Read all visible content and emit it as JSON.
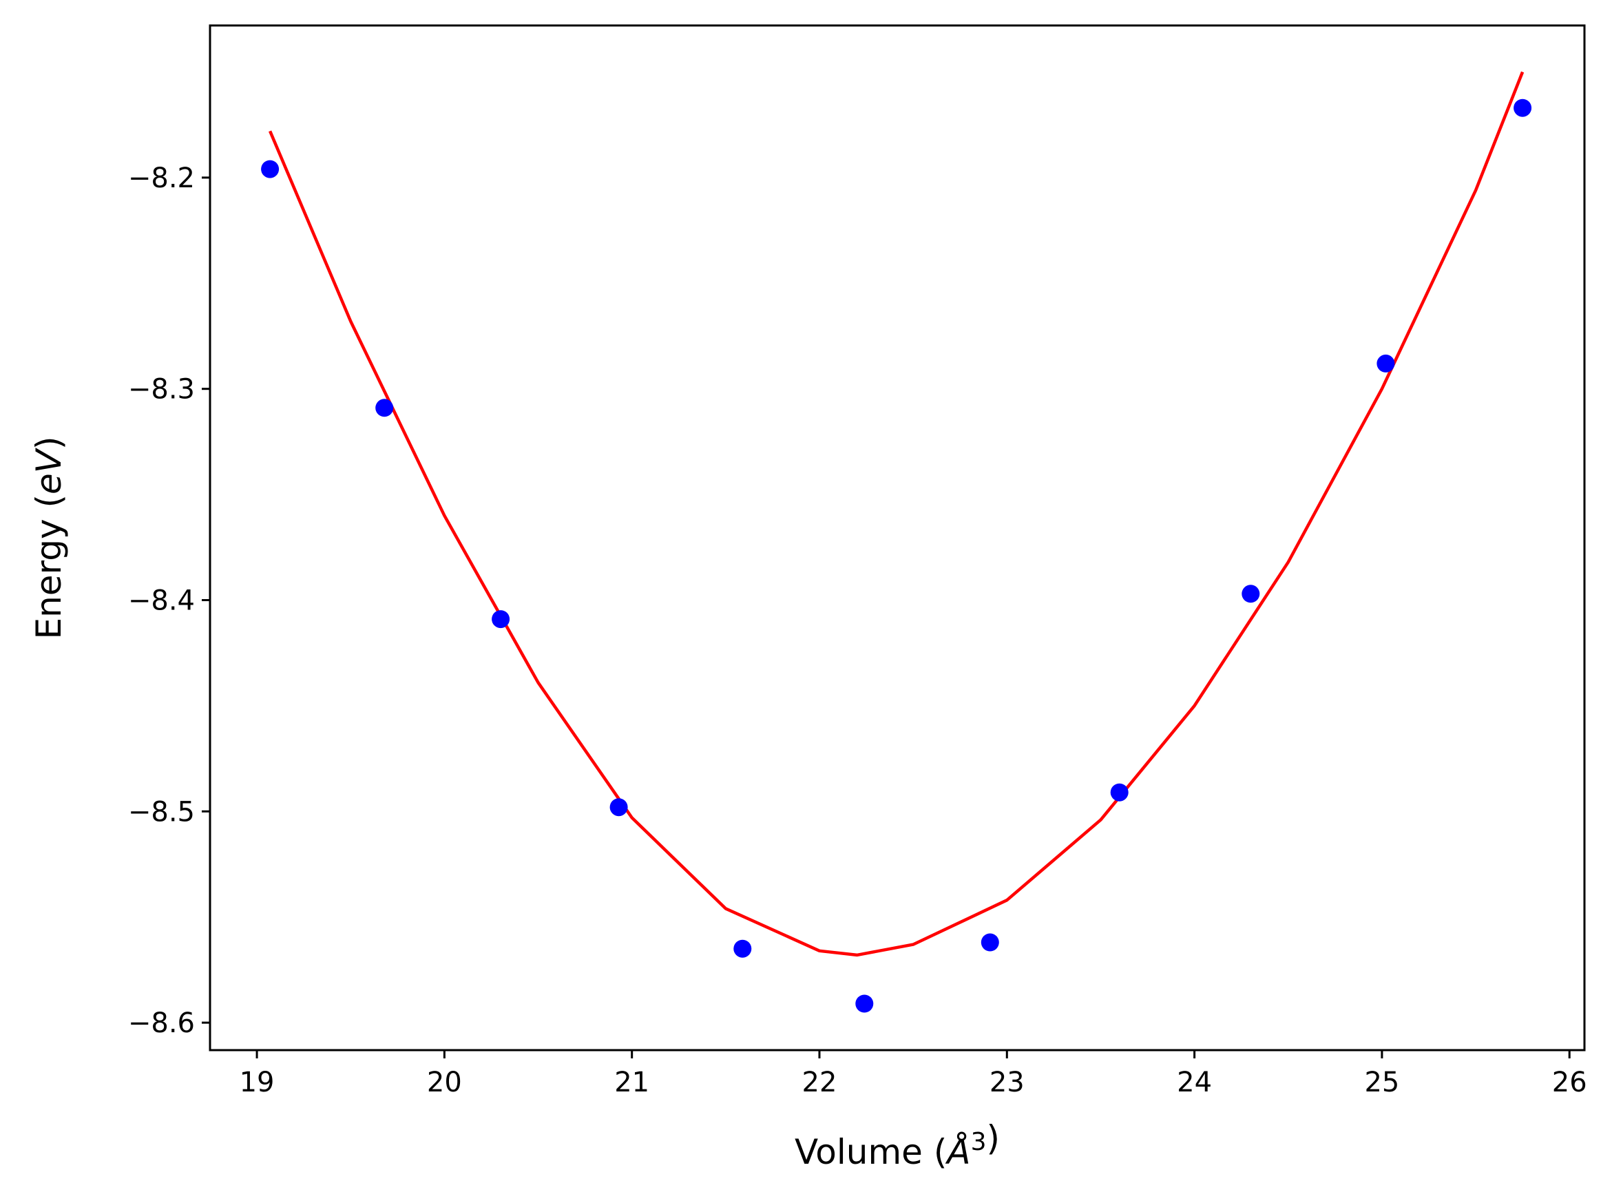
{
  "chart_data": {
    "type": "scatter",
    "title": "",
    "xlabel": "Volume ($\\AA^3$)",
    "ylabel": "Energy ($eV$)",
    "xlim": [
      18.75,
      26.08
    ],
    "ylim": [
      -8.613,
      -8.128
    ],
    "xticks": [
      19,
      20,
      21,
      22,
      23,
      24,
      25,
      26
    ],
    "xtick_labels": [
      "19",
      "20",
      "21",
      "22",
      "23",
      "24",
      "25",
      "26"
    ],
    "yticks": [
      -8.2,
      -8.3,
      -8.4,
      -8.5,
      -8.6
    ],
    "ytick_labels": [
      "−8.2",
      "−8.3",
      "−8.4",
      "−8.5",
      "−8.6"
    ],
    "grid": false,
    "legend": "none",
    "series": [
      {
        "kind": "scatter",
        "color": "#0000ff",
        "x": [
          19.07,
          19.68,
          20.3,
          20.93,
          21.59,
          22.24,
          22.91,
          23.6,
          24.3,
          25.02,
          25.75
        ],
        "y": [
          -8.196,
          -8.309,
          -8.409,
          -8.498,
          -8.565,
          -8.591,
          -8.562,
          -8.491,
          -8.397,
          -8.288,
          -8.167
        ]
      },
      {
        "kind": "line",
        "color": "#ff0000",
        "x": [
          19.07,
          19.5,
          20.0,
          20.5,
          21.0,
          21.5,
          22.0,
          22.2,
          22.5,
          23.0,
          23.5,
          24.0,
          24.5,
          25.0,
          25.5,
          25.75
        ],
        "y": [
          -8.178,
          -8.268,
          -8.36,
          -8.439,
          -8.503,
          -8.546,
          -8.566,
          -8.568,
          -8.563,
          -8.542,
          -8.504,
          -8.45,
          -8.382,
          -8.3,
          -8.206,
          -8.15
        ]
      }
    ]
  }
}
